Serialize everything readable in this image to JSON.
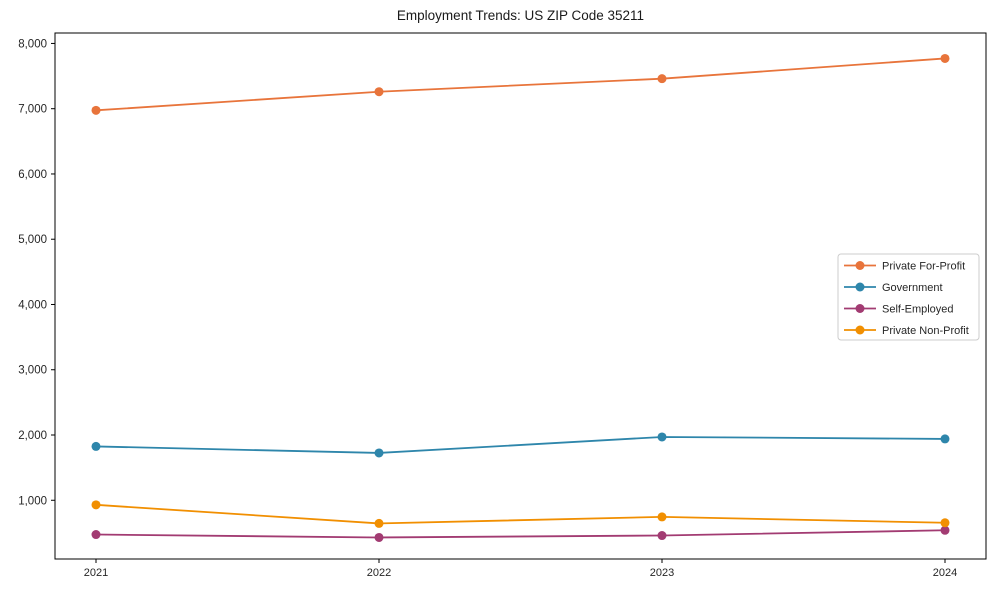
{
  "figure": {
    "background": "#ffffff",
    "axis_color": "#000000",
    "text_color": "#262626",
    "legend_border_color": "#cccccc"
  },
  "chart_data": {
    "type": "line",
    "title": "Employment Trends: US ZIP Code 35211",
    "xlabel": "",
    "ylabel": "",
    "x_categories": [
      "2021",
      "2022",
      "2023",
      "2024"
    ],
    "series": [
      {
        "name": "Private For-Profit",
        "color": "#E8743B",
        "values": [
          6975,
          7260,
          7460,
          7770
        ]
      },
      {
        "name": "Government",
        "color": "#2E86AB",
        "values": [
          1825,
          1725,
          1970,
          1940
        ]
      },
      {
        "name": "Self-Employed",
        "color": "#A23B72",
        "values": [
          475,
          430,
          460,
          540
        ]
      },
      {
        "name": "Private Non-Profit",
        "color": "#F18F01",
        "values": [
          930,
          645,
          745,
          655
        ]
      }
    ],
    "ylim": [
      100,
      8160
    ],
    "yticks": [
      1000,
      2000,
      3000,
      4000,
      5000,
      6000,
      7000,
      8000
    ],
    "ytick_labels": [
      "1,000",
      "2,000",
      "3,000",
      "4,000",
      "5,000",
      "6,000",
      "7,000",
      "8,000"
    ],
    "grid": false,
    "marker": "circle",
    "legend": {
      "position": "center-right",
      "entries": [
        "Private For-Profit",
        "Government",
        "Self-Employed",
        "Private Non-Profit"
      ]
    }
  }
}
